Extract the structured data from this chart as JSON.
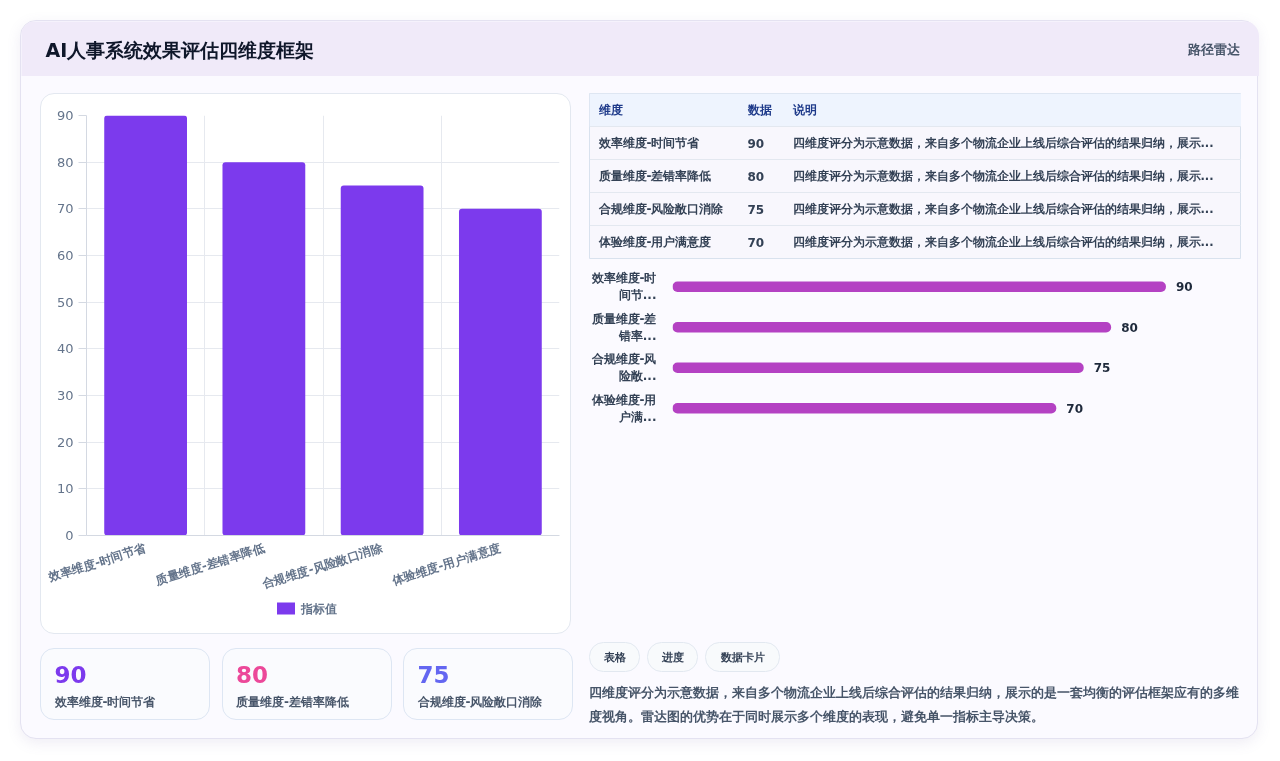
{
  "chart_data": [
    {
      "type": "other",
      "title": "AI人事系统效果评估四维度框架",
      "annotations": [
        "路径雷达"
      ]
    },
    {
      "type": "bar",
      "categories": [
        "效率维度-时间节省",
        "质量维度-差错率降低",
        "合规维度-风险敞口消除",
        "体验维度-用户满意度"
      ],
      "series": [
        {
          "name": "指标值",
          "color": "#7c3aed",
          "values": [
            90,
            80,
            75,
            70
          ]
        }
      ],
      "ylim": [
        0,
        90
      ],
      "yticks": [
        0,
        10,
        20,
        30,
        40,
        50,
        60,
        70,
        80,
        90
      ],
      "grid": true,
      "legend": "bottom"
    },
    {
      "type": "other",
      "categories": [
        "效率维度-时间节省",
        "质量维度-差错率降低",
        "合规维度-风险敞口消除",
        "体验维度-用户满意度"
      ],
      "values": [
        90,
        80,
        75,
        70
      ],
      "data_labels": true,
      "annotations": [
        "维度",
        "数据",
        "说明",
        "四维度评分为示意数据，来自多个物流企业上线后综合评估的结果归纳，展示...",
        "四维度评分为示意数据，来自多个物流企业上线后综合评估的结果归纳，展示...",
        "四维度评分为示意数据，来自多个物流企业上线后综合评估的结果归纳，展示...",
        "四维度评分为示意数据，来自多个物流企业上线后综合评估的结果归纳，展示..."
      ]
    },
    {
      "type": "bar",
      "orientation": "horizontal",
      "categories": [
        "效率维度-时间节...",
        "质量维度-差错率...",
        "合规维度-风险敞...",
        "体验维度-用户满..."
      ],
      "values": [
        90,
        80,
        75,
        70
      ],
      "color": "#b441c3",
      "data_labels": true,
      "tick_labels": "y"
    },
    {
      "type": "other",
      "categories": [
        "效率维度-时间节省",
        "质量维度-差错率降低",
        "合规维度-风险敞口消除"
      ],
      "values": [
        90,
        80,
        75
      ],
      "data_labels": true
    },
    {
      "type": "other",
      "annotations": [
        "表格",
        "进度",
        "数据卡片",
        "四维度评分为示意数据，来自多个物流企业上线后综合评估的结果归纳，展示的是一套均衡的评估框架应有的多维度视角。雷达图的优势在于同时展示多个维度的表现，避免单一指标主导决策。"
      ]
    }
  ]
}
